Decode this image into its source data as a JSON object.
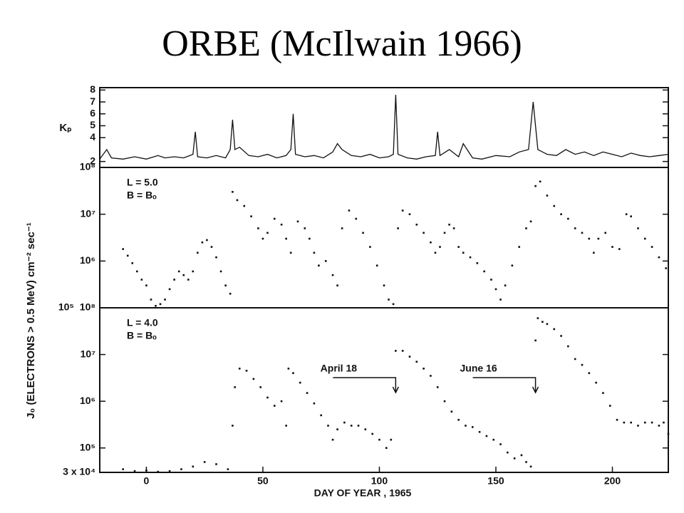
{
  "title": "ORBE (McIlwain 1966)",
  "ylabel": "J₀ (ELECTRONS > 0.5 MeV) cm⁻² sec⁻¹",
  "chart_data": [
    {
      "type": "line",
      "ylabel": "Kₚ",
      "color": "#111111",
      "x": [
        -20,
        -17,
        -15,
        -10,
        -5,
        0,
        5,
        8,
        12,
        16,
        20,
        21,
        22,
        26,
        30,
        34,
        36,
        37,
        38,
        40,
        44,
        48,
        52,
        56,
        60,
        62,
        63,
        64,
        68,
        72,
        76,
        80,
        82,
        84,
        88,
        92,
        96,
        100,
        104,
        106,
        107,
        108,
        112,
        116,
        120,
        124,
        125,
        126,
        130,
        134,
        136,
        140,
        144,
        150,
        156,
        160,
        164,
        166,
        167,
        168,
        172,
        176,
        180,
        184,
        188,
        192,
        196,
        200,
        204,
        208,
        212,
        216,
        220,
        224
      ],
      "values": [
        2.2,
        3,
        2.3,
        2.2,
        2.4,
        2.2,
        2.5,
        2.3,
        2.4,
        2.3,
        2.6,
        4.5,
        2.4,
        2.3,
        2.5,
        2.3,
        3,
        5.5,
        3,
        3.2,
        2.5,
        2.4,
        2.6,
        2.3,
        2.5,
        3,
        6,
        2.6,
        2.4,
        2.5,
        2.3,
        2.8,
        3.5,
        3,
        2.5,
        2.4,
        2.6,
        2.3,
        2.4,
        2.6,
        7.6,
        2.6,
        2.3,
        2.2,
        2.4,
        2.5,
        4.5,
        2.5,
        3,
        2.4,
        3.5,
        2.3,
        2.2,
        2.5,
        2.4,
        2.8,
        3,
        7,
        5,
        3,
        2.6,
        2.5,
        3,
        2.6,
        2.8,
        2.5,
        2.8,
        2.6,
        2.4,
        2.7,
        2.5,
        2.4,
        2.5,
        2.6
      ],
      "xlim": [
        -20,
        224
      ],
      "ylim": [
        1.5,
        8.2
      ],
      "yticks": [
        2,
        4,
        5,
        6,
        7,
        8
      ]
    },
    {
      "type": "scatter",
      "log": true,
      "color": "#111111",
      "labels": [
        "L = 5.0",
        "B = Bₒ"
      ],
      "x": [
        -10,
        -8,
        -6,
        -4,
        -2,
        0,
        2,
        4,
        6,
        8,
        10,
        12,
        14,
        16,
        18,
        20,
        22,
        24,
        26,
        28,
        30,
        32,
        34,
        36,
        37,
        39,
        42,
        45,
        48,
        50,
        52,
        55,
        58,
        60,
        62,
        65,
        68,
        70,
        72,
        74,
        77,
        80,
        82,
        84,
        87,
        90,
        93,
        96,
        99,
        102,
        104,
        106,
        108,
        110,
        113,
        116,
        119,
        122,
        124,
        126,
        128,
        130,
        132,
        134,
        136,
        139,
        142,
        145,
        148,
        150,
        152,
        154,
        157,
        160,
        163,
        165,
        167,
        169,
        172,
        175,
        178,
        181,
        184,
        187,
        190,
        192,
        194,
        197,
        200,
        203,
        206,
        208,
        211,
        214,
        217,
        220,
        223
      ],
      "values": [
        1800000.0,
        1300000.0,
        900000.0,
        600000.0,
        400000.0,
        300000.0,
        150000.0,
        110000.0,
        120000.0,
        150000.0,
        250000.0,
        400000.0,
        600000.0,
        500000.0,
        400000.0,
        600000.0,
        1500000.0,
        2500000.0,
        2800000.0,
        2000000.0,
        1200000.0,
        600000.0,
        300000.0,
        200000.0,
        30000000.0,
        20000000.0,
        15000000.0,
        9000000.0,
        5000000.0,
        3000000.0,
        4000000.0,
        8000000.0,
        6000000.0,
        3000000.0,
        1500000.0,
        7000000.0,
        5000000.0,
        3000000.0,
        1500000.0,
        800000.0,
        1000000.0,
        500000.0,
        300000.0,
        5000000.0,
        12000000.0,
        8000000.0,
        4000000.0,
        2000000.0,
        800000.0,
        300000.0,
        150000.0,
        120000.0,
        5000000.0,
        12000000.0,
        10000000.0,
        6000000.0,
        4000000.0,
        2500000.0,
        1500000.0,
        2000000.0,
        4000000.0,
        6000000.0,
        5000000.0,
        2000000.0,
        1500000.0,
        1200000.0,
        900000.0,
        600000.0,
        400000.0,
        250000.0,
        150000.0,
        300000.0,
        800000.0,
        2000000.0,
        5000000.0,
        7000000.0,
        40000000.0,
        50000000.0,
        25000000.0,
        15000000.0,
        10000000.0,
        8000000.0,
        5000000.0,
        4000000.0,
        3000000.0,
        1500000.0,
        3000000.0,
        4000000.0,
        2000000.0,
        1800000.0,
        10000000.0,
        9000000.0,
        5000000.0,
        3000000.0,
        2000000.0,
        1200000.0,
        700000.0
      ],
      "xlim": [
        -20,
        224
      ],
      "ylim": [
        100000,
        100000000
      ],
      "yticks": [
        {
          "value": 100000,
          "label": "10⁵"
        },
        {
          "value": 1000000,
          "label": "10⁶"
        },
        {
          "value": 10000000,
          "label": "10⁷"
        },
        {
          "value": 100000000,
          "label": "10⁸"
        }
      ]
    },
    {
      "type": "scatter",
      "log": true,
      "color": "#111111",
      "labels": [
        "L = 4.0",
        "B = Bₒ"
      ],
      "annotations": [
        {
          "text": "April 18",
          "x": 107
        },
        {
          "text": "June 16",
          "x": 167
        }
      ],
      "x": [
        -10,
        -5,
        0,
        5,
        10,
        15,
        20,
        25,
        30,
        35,
        37,
        38,
        40,
        43,
        46,
        49,
        52,
        55,
        58,
        60,
        61,
        63,
        66,
        69,
        72,
        75,
        78,
        80,
        82,
        85,
        88,
        91,
        94,
        97,
        100,
        103,
        105,
        107,
        110,
        113,
        116,
        119,
        122,
        125,
        128,
        131,
        134,
        137,
        140,
        143,
        146,
        149,
        152,
        155,
        158,
        161,
        163,
        165,
        167,
        168,
        170,
        172,
        175,
        178,
        181,
        184,
        187,
        190,
        193,
        196,
        199,
        202,
        205,
        208,
        211,
        214,
        217,
        220,
        222,
        224
      ],
      "values": [
        35000.0,
        32000.0,
        33000.0,
        31000.0,
        32000.0,
        35000.0,
        40000.0,
        50000.0,
        45000.0,
        35000.0,
        300000.0,
        2000000.0,
        5000000.0,
        4500000.0,
        3000000.0,
        2000000.0,
        1200000.0,
        800000.0,
        1000000.0,
        300000.0,
        5000000.0,
        4000000.0,
        2500000.0,
        1500000.0,
        900000.0,
        500000.0,
        300000.0,
        150000.0,
        250000.0,
        350000.0,
        300000.0,
        300000.0,
        250000.0,
        200000.0,
        150000.0,
        100000.0,
        150000.0,
        12000000.0,
        12000000.0,
        9000000.0,
        7000000.0,
        5000000.0,
        3500000.0,
        2000000.0,
        1000000.0,
        600000.0,
        400000.0,
        300000.0,
        280000.0,
        220000.0,
        180000.0,
        150000.0,
        120000.0,
        80000.0,
        60000.0,
        70000.0,
        50000.0,
        40000.0,
        20000000.0,
        60000000.0,
        50000000.0,
        45000000.0,
        35000000.0,
        25000000.0,
        15000000.0,
        8000000.0,
        6000000.0,
        4000000.0,
        2500000.0,
        1500000.0,
        800000.0,
        400000.0,
        350000.0,
        350000.0,
        300000.0,
        350000.0,
        350000.0,
        300000.0,
        350000.0,
        200000.0
      ],
      "xlim": [
        -20,
        224
      ],
      "ylim": [
        30000,
        100000000
      ],
      "yticks": [
        {
          "value": 30000,
          "label": "3 x 10⁴"
        },
        {
          "value": 100000,
          "label": "10⁵"
        },
        {
          "value": 1000000,
          "label": "10⁶"
        },
        {
          "value": 10000000,
          "label": "10⁷"
        },
        {
          "value": 100000000,
          "label": "10⁸"
        }
      ],
      "xticks": [
        0,
        50,
        100,
        150,
        200
      ],
      "xlabel": "DAY OF YEAR , 1965"
    }
  ]
}
